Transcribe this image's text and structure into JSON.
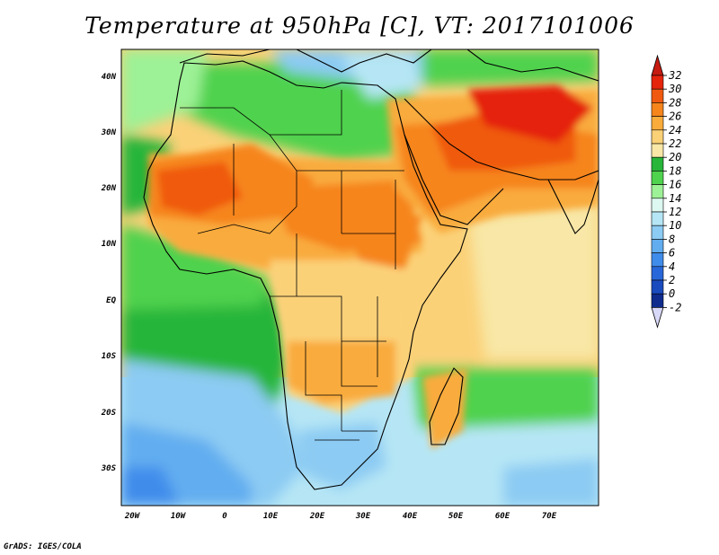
{
  "title": "Temperature at 950hPa [C], VT: 2017101006",
  "credit": "GrADS: IGES/COLA",
  "map": {
    "lat_labels": [
      "40N",
      "30N",
      "20N",
      "10N",
      "EQ",
      "10S",
      "20S",
      "30S"
    ],
    "lon_labels": [
      "20W",
      "10W",
      "0",
      "10E",
      "20E",
      "30E",
      "40E",
      "50E",
      "60E",
      "70E"
    ],
    "lat_range": [
      -36,
      45
    ],
    "lon_range": [
      -22,
      80
    ]
  },
  "colorbar": {
    "labels": [
      "32",
      "30",
      "28",
      "26",
      "24",
      "22",
      "20",
      "18",
      "16",
      "14",
      "12",
      "10",
      "8",
      "6",
      "4",
      "2",
      "0",
      "-2"
    ],
    "colors": [
      "#e5240c",
      "#f05a10",
      "#f6851c",
      "#f9ab3c",
      "#fbd178",
      "#f8e7a6",
      "#27b53a",
      "#4fd24e",
      "#9df196",
      "#dcf8f0",
      "#b6e6f5",
      "#8ccbf3",
      "#62adf0",
      "#3f8ceb",
      "#2867d9",
      "#1a4bbe",
      "#0f2b8d",
      "#0b1b6a"
    ],
    "top_arrow_color": "#c61b10",
    "bottom_arrow_color": "#d8d8f8"
  }
}
